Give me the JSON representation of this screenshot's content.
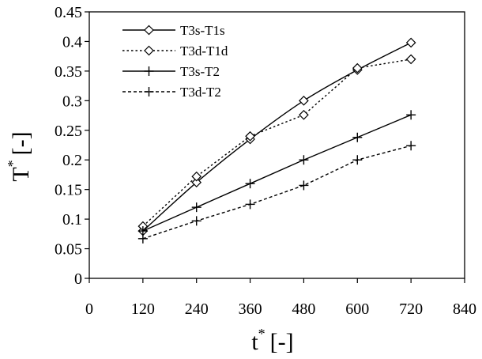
{
  "chart_data": {
    "type": "line",
    "xlabel": "t",
    "xlabel_superscript": "*",
    "xlabel_unit": "[-]",
    "ylabel": "T",
    "ylabel_superscript": "*",
    "ylabel_unit": "[-]",
    "xlim": [
      0,
      840
    ],
    "ylim": [
      0,
      0.45
    ],
    "xticks": [
      "0",
      "120",
      "240",
      "360",
      "480",
      "600",
      "720",
      "840"
    ],
    "yticks": [
      "0",
      "0.05",
      "0.1",
      "0.15",
      "0.2",
      "0.25",
      "0.3",
      "0.35",
      "0.4",
      "0.45"
    ],
    "grid": false,
    "legend_position": "top-left",
    "x": [
      120,
      240,
      360,
      480,
      600,
      720
    ],
    "series": [
      {
        "name": "T3s-T1s",
        "marker": "diamond",
        "line": "solid",
        "smooth": true,
        "values": [
          0.08,
          0.162,
          0.235,
          0.3,
          0.352,
          0.398
        ]
      },
      {
        "name": "T3d-T1d",
        "marker": "diamond",
        "line": "dotted",
        "smooth": false,
        "values": [
          0.088,
          0.172,
          0.24,
          0.276,
          0.355,
          0.37
        ]
      },
      {
        "name": "T3s-T2",
        "marker": "plus",
        "line": "solid",
        "smooth": false,
        "values": [
          0.08,
          0.12,
          0.16,
          0.2,
          0.238,
          0.276
        ]
      },
      {
        "name": "T3d-T2",
        "marker": "plus",
        "line": "dashed",
        "smooth": false,
        "values": [
          0.067,
          0.097,
          0.125,
          0.157,
          0.2,
          0.224
        ]
      }
    ]
  }
}
